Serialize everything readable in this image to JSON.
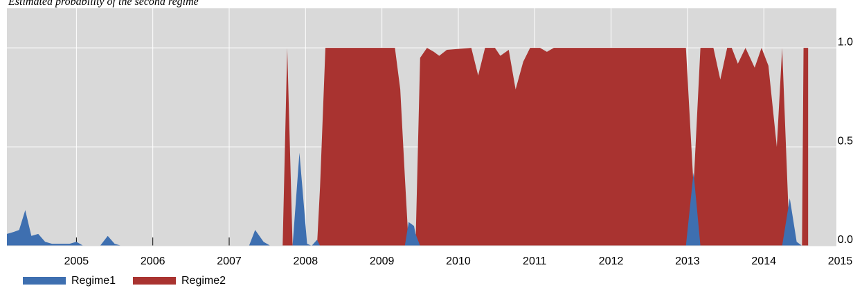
{
  "chart_data": {
    "type": "area",
    "title": "Estimated probability of the second regime",
    "x": [
      2004.09,
      2004.18,
      2004.25,
      2004.33,
      2004.41,
      2004.5,
      2004.59,
      2004.68,
      2004.91,
      2005.0,
      2005.09,
      2005.31,
      2005.41,
      2005.5,
      2005.59,
      2007.26,
      2007.34,
      2007.45,
      2007.54,
      2007.7,
      2007.76,
      2007.83,
      2007.92,
      2008.02,
      2008.08,
      2008.15,
      2008.19,
      2008.26,
      2009.17,
      2009.24,
      2009.3,
      2009.35,
      2009.42,
      2009.44,
      2009.5,
      2009.59,
      2009.68,
      2009.75,
      2009.85,
      2010.17,
      2010.26,
      2010.35,
      2010.48,
      2010.55,
      2010.66,
      2010.75,
      2010.85,
      2010.94,
      2011.07,
      2011.16,
      2011.25,
      2012.98,
      2013.08,
      2013.17,
      2013.34,
      2013.43,
      2013.52,
      2013.58,
      2013.66,
      2013.76,
      2013.88,
      2013.97,
      2014.06,
      2014.17,
      2014.24,
      2014.34,
      2014.43,
      2014.5,
      2014.52,
      2014.58
    ],
    "series": [
      {
        "name": "Regime2",
        "color": "#a93330",
        "values": [
          0,
          0,
          0,
          0,
          0,
          0,
          0,
          0,
          0,
          0,
          0,
          0,
          0,
          0,
          0,
          0,
          0,
          0,
          0,
          0,
          1.0,
          0,
          0,
          0,
          0,
          0,
          0.3,
          1.0,
          1.0,
          0.79,
          0.35,
          0,
          0,
          0,
          0.95,
          1.0,
          0.98,
          0.96,
          0.99,
          1.0,
          0.86,
          1.0,
          1.0,
          0.96,
          0.99,
          0.79,
          0.93,
          1.0,
          1.0,
          0.98,
          1.0,
          1.0,
          0.3,
          1.0,
          1.0,
          0.84,
          1.0,
          1.0,
          0.92,
          1.0,
          0.9,
          1.0,
          0.91,
          0.5,
          1.0,
          0,
          0,
          0,
          1.0,
          1.0
        ]
      },
      {
        "name": "Regime1",
        "color": "#3e6fb0",
        "values": [
          0.06,
          0.07,
          0.08,
          0.18,
          0.05,
          0.06,
          0.02,
          0.01,
          0.01,
          0.02,
          0,
          0,
          0.05,
          0.01,
          0,
          0,
          0.08,
          0.02,
          0,
          0,
          0,
          0,
          0.47,
          0.01,
          0,
          0.03,
          0,
          0,
          0,
          0,
          0,
          0.12,
          0.1,
          0.06,
          0,
          0,
          0,
          0,
          0,
          0,
          0,
          0,
          0,
          0,
          0,
          0,
          0,
          0,
          0,
          0,
          0,
          0,
          0.37,
          0,
          0,
          0,
          0,
          0,
          0,
          0,
          0,
          0,
          0,
          0,
          0,
          0.24,
          0.02,
          0,
          0,
          0
        ]
      }
    ],
    "xlim": [
      2004.09,
      2014.95
    ],
    "ylim": [
      0,
      1.2
    ],
    "xticks": [
      2005,
      2006,
      2007,
      2008,
      2009,
      2010,
      2011,
      2012,
      2013,
      2014,
      2015
    ],
    "yticks": [
      {
        "value": 0,
        "label": "0.0"
      },
      0.5,
      {
        "value": 1,
        "label": "1.0"
      }
    ],
    "grid": true,
    "legend": "bottom-left"
  }
}
